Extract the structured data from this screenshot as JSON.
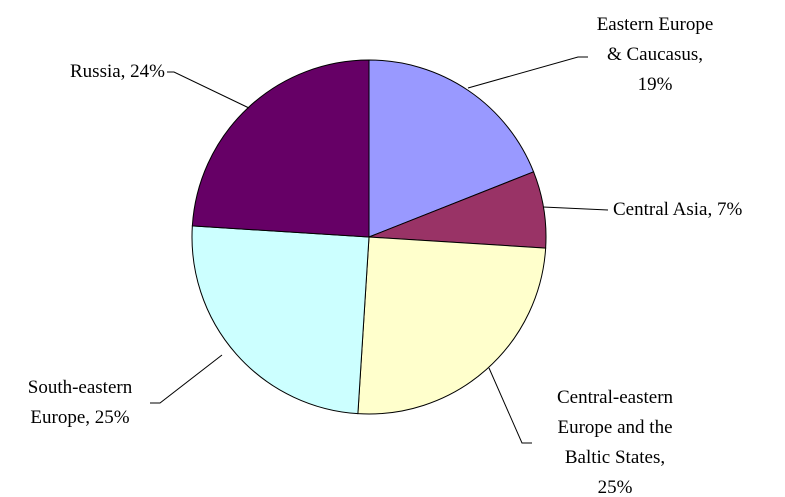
{
  "chart_data": {
    "type": "pie",
    "values": [
      19,
      7,
      25,
      25,
      24
    ],
    "value_labels": [
      "Eastern Europe\n& Caucasus,\n19%",
      "Central Asia, 7%",
      "Central-eastern\nEurope and the\nBaltic States,\n25%",
      "South-eastern\nEurope, 25%",
      "Russia, 24%"
    ],
    "colors": [
      "#9999ff",
      "#993366",
      "#ffffcc",
      "#ccffff",
      "#660066"
    ]
  }
}
